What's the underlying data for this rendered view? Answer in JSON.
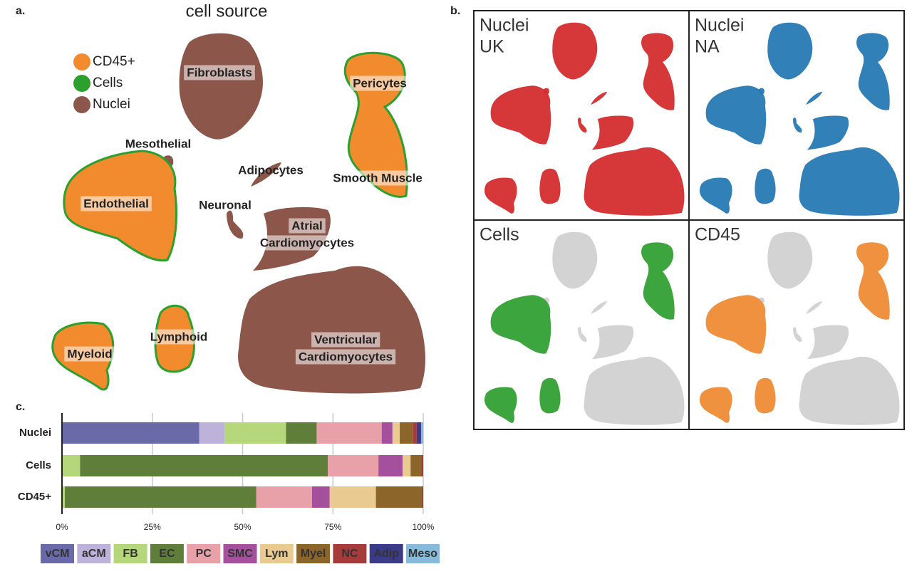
{
  "panel_a": {
    "letter": "a.",
    "title": "cell source",
    "legend": [
      {
        "name": "CD45+",
        "color": "#f28a2e"
      },
      {
        "name": "Cells",
        "color": "#2ca02c"
      },
      {
        "name": "Nuclei",
        "color": "#8c564b"
      }
    ],
    "clusters": [
      {
        "label": [
          "Fibroblasts"
        ]
      },
      {
        "label": [
          "Pericytes"
        ]
      },
      {
        "label": [
          "Mesothelial"
        ]
      },
      {
        "label": [
          "Adipocytes"
        ]
      },
      {
        "label": [
          "Smooth Muscle"
        ]
      },
      {
        "label": [
          "Endothelial"
        ]
      },
      {
        "label": [
          "Neuronal"
        ]
      },
      {
        "label": [
          "Atrial",
          "Cardiomyocytes"
        ]
      },
      {
        "label": [
          "Lymphoid"
        ]
      },
      {
        "label": [
          "Myeloid"
        ]
      },
      {
        "label": [
          "Ventricular",
          "Cardiomyocytes"
        ]
      }
    ]
  },
  "panel_b": {
    "letter": "b.",
    "panels": [
      {
        "label": [
          "Nuclei",
          "UK"
        ],
        "color": "#d62728"
      },
      {
        "label": [
          "Nuclei",
          "NA"
        ],
        "color": "#1f77b4"
      },
      {
        "label": [
          "Cells"
        ],
        "color": "#2ca02c"
      },
      {
        "label": [
          "CD45"
        ],
        "color": "#f28a2e"
      }
    ]
  },
  "panel_c": {
    "letter": "c."
  },
  "chart_data": {
    "type": "stacked-bar-horizontal",
    "categories": [
      "Nuclei",
      "Cells",
      "CD45+"
    ],
    "series": [
      {
        "name": "vCM",
        "color": "#6b6aa8",
        "values": [
          38,
          0,
          0
        ]
      },
      {
        "name": "aCM",
        "color": "#bdb2da",
        "values": [
          7,
          0,
          0
        ]
      },
      {
        "name": "FB",
        "color": "#b6d67b",
        "values": [
          17,
          5,
          0.8
        ]
      },
      {
        "name": "EC",
        "color": "#5f7e3a",
        "values": [
          8.5,
          68.6,
          53
        ]
      },
      {
        "name": "PC",
        "color": "#e9a1a9",
        "values": [
          18,
          14,
          15.4
        ]
      },
      {
        "name": "SMC",
        "color": "#a5509c",
        "values": [
          3,
          6.7,
          4.9
        ]
      },
      {
        "name": "Lym",
        "color": "#e9ca91",
        "values": [
          2,
          2.2,
          12.8
        ]
      },
      {
        "name": "Myel",
        "color": "#8b6529",
        "values": [
          3.7,
          3,
          12.8
        ]
      },
      {
        "name": "NC",
        "color": "#a63b3b",
        "values": [
          1,
          0.5,
          0.3
        ]
      },
      {
        "name": "Adip",
        "color": "#3b3b89",
        "values": [
          1.2,
          0,
          0
        ]
      },
      {
        "name": "Meso",
        "color": "#88bbd9",
        "values": [
          0.6,
          0,
          0
        ]
      }
    ],
    "xlim": [
      0,
      100
    ],
    "xticks": [
      {
        "value": 0,
        "label": "0%"
      },
      {
        "value": 25,
        "label": "25%"
      },
      {
        "value": 50,
        "label": "50%"
      },
      {
        "value": 75,
        "label": "75%"
      },
      {
        "value": 100,
        "label": "100%"
      }
    ],
    "grid": true
  }
}
